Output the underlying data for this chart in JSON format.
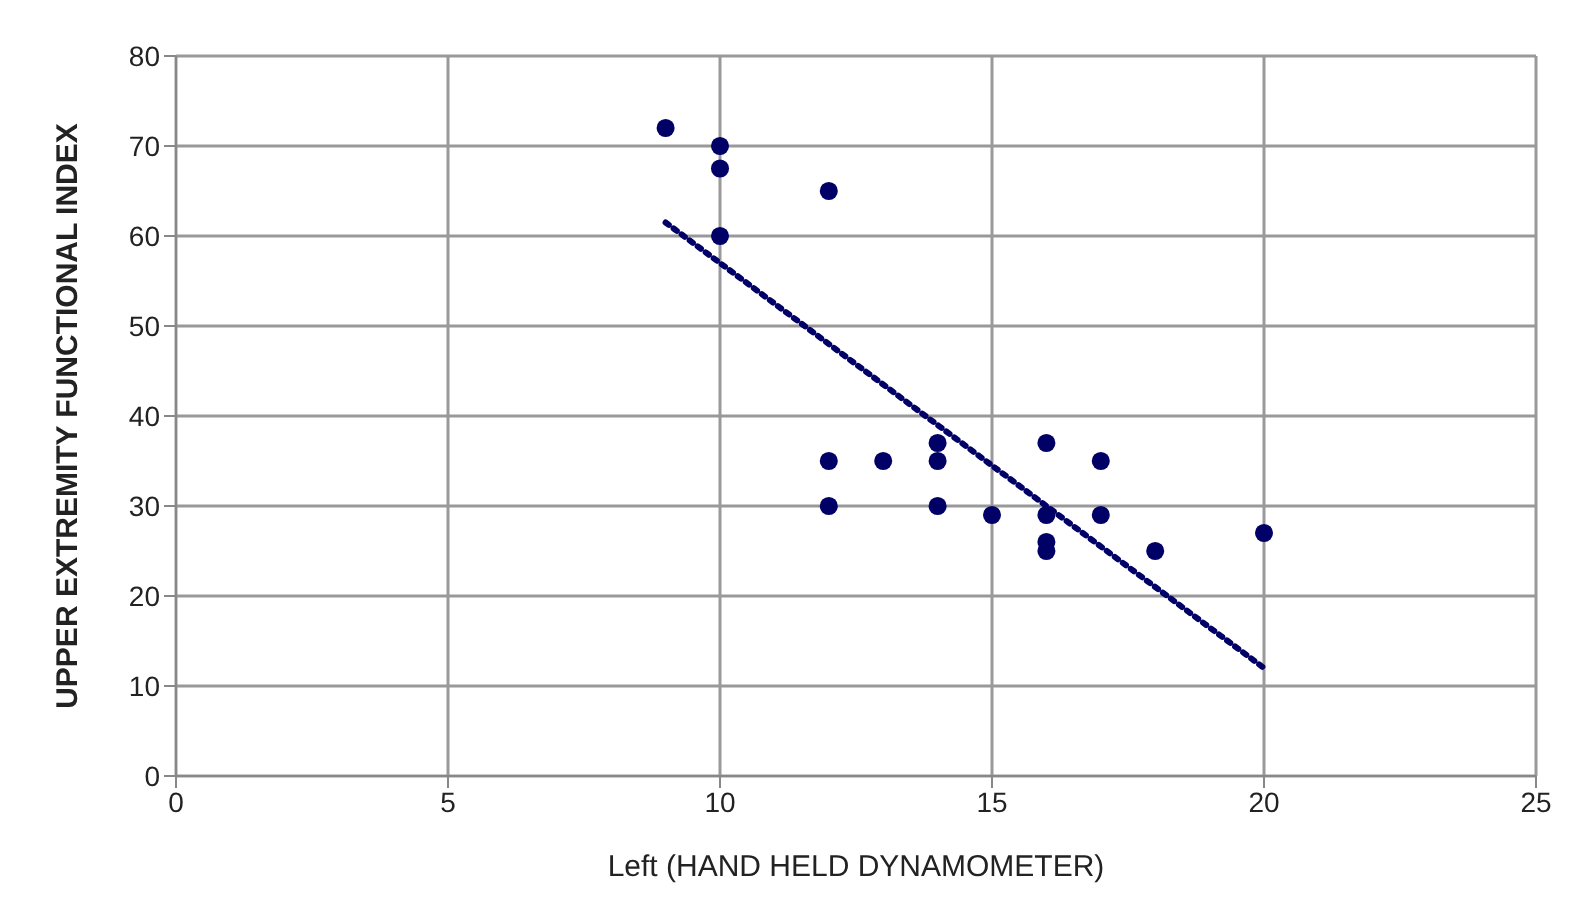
{
  "chart_data": {
    "type": "scatter",
    "xlabel": "Left (HAND HELD DYNAMOMETER)",
    "ylabel": "UPPER EXTREMITY FUNCTIONAL INDEX",
    "xlim": [
      0,
      25
    ],
    "xticks": [
      0,
      5,
      10,
      15,
      20,
      25
    ],
    "ylim": [
      0,
      80
    ],
    "yticks": [
      0,
      10,
      20,
      30,
      40,
      50,
      60,
      70,
      80
    ],
    "grid": true,
    "legend": false,
    "series": [
      {
        "color": "#000066",
        "marker": "circle",
        "x": [
          9,
          10,
          10,
          10,
          12,
          12,
          12,
          13,
          14,
          14,
          14,
          15,
          16,
          16,
          16,
          16,
          17,
          17,
          18,
          20
        ],
        "values": [
          72,
          70,
          67.5,
          60,
          65,
          35,
          30,
          35,
          37,
          35,
          30,
          29,
          37,
          29,
          26,
          25,
          35,
          29,
          25,
          27
        ]
      },
      {
        "type": "line",
        "color": "#000066",
        "marker": "none",
        "line_style": "dotted",
        "x": [
          9,
          20
        ],
        "values": [
          61.5,
          12
        ]
      }
    ]
  }
}
